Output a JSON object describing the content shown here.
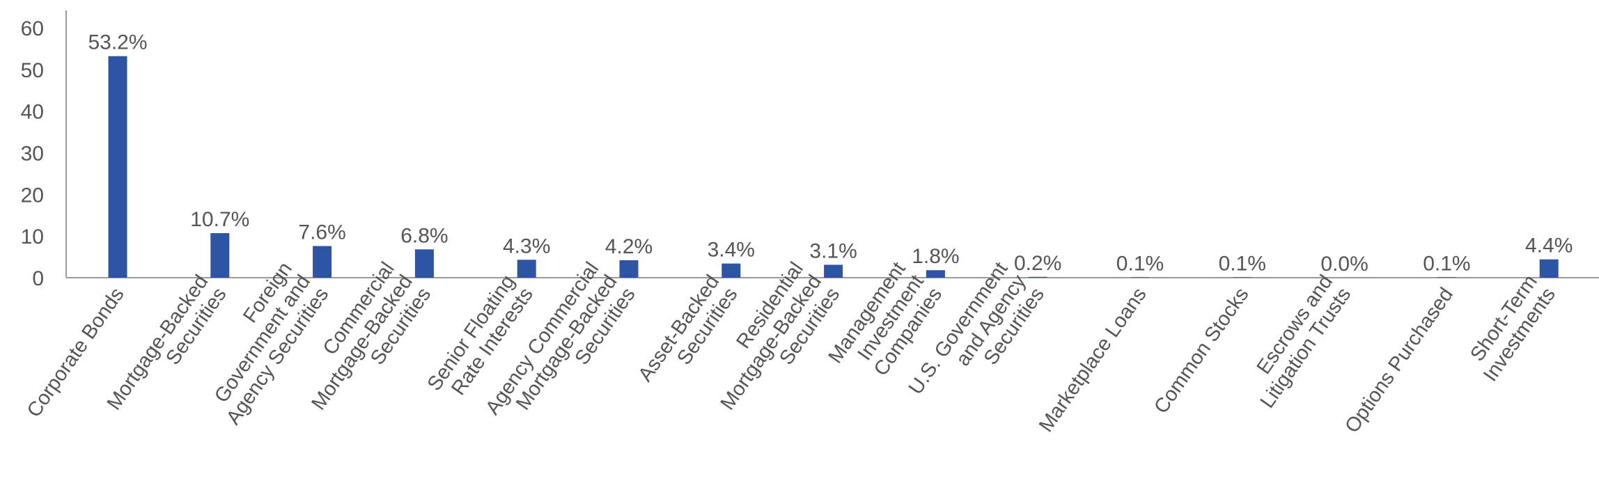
{
  "chart_data": {
    "type": "bar",
    "categories": [
      [
        "Corporate Bonds"
      ],
      [
        "Mortgage-Backed",
        "Securities"
      ],
      [
        "Foreign",
        "Government and",
        "Agency Securities"
      ],
      [
        "Commercial",
        "Mortgage-Backed",
        "Securities"
      ],
      [
        "Senior Floating",
        "Rate Interests"
      ],
      [
        "Agency Commercial",
        "Mortgage-Backed",
        "Securities"
      ],
      [
        "Asset-Backed",
        "Securities"
      ],
      [
        "Residential",
        "Mortgage-Backed",
        "Securities"
      ],
      [
        "Management",
        "Investment",
        "Companies"
      ],
      [
        "U.S. Government",
        "and Agency",
        "Securities"
      ],
      [
        "Marketplace Loans"
      ],
      [
        "Common Stocks"
      ],
      [
        "Escrows and",
        "Litigation Trusts"
      ],
      [
        "Options Purchased"
      ],
      [
        "Short-Term",
        "Investments"
      ]
    ],
    "values": [
      53.2,
      10.7,
      7.6,
      6.8,
      4.3,
      4.2,
      3.4,
      3.1,
      1.8,
      0.2,
      0.1,
      0.1,
      0.0,
      0.1,
      4.4
    ],
    "data_labels": [
      "53.2%",
      "10.7%",
      "7.6%",
      "6.8%",
      "4.3%",
      "4.2%",
      "3.4%",
      "3.1%",
      "1.8%",
      "0.2%",
      "0.1%",
      "0.1%",
      "0.0%",
      "0.1%",
      "4.4%"
    ],
    "yticks": [
      "0",
      "10",
      "20",
      "30",
      "40",
      "50",
      "60"
    ],
    "ylim": [
      0,
      60
    ],
    "title": "",
    "xlabel": "",
    "ylabel": "",
    "grid": false,
    "bar_color": "#2e55a4",
    "axis_color": "#9a9a9a",
    "text_color": "#555555"
  }
}
